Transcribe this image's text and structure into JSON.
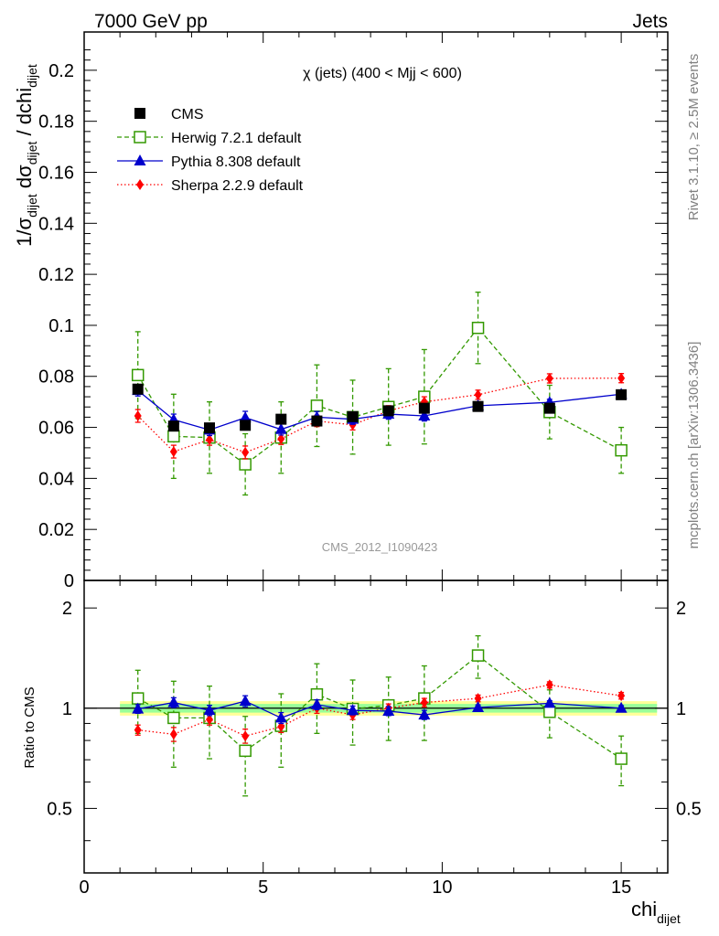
{
  "header": {
    "energy": "7000 GeV pp",
    "process": "Jets",
    "side_top": "Rivet 3.1.10, ≥ 2.5M events",
    "side_bottom": "mcplots.cern.ch [arXiv:1306.3436]",
    "analysis_id": "CMS_2012_I1090423"
  },
  "chart_data": [
    {
      "type": "scatter",
      "title": "χ (jets) (400 < Mjj <  600)",
      "ylabel": "1/σ_dijet dσ_dijet / dchi_dijet",
      "xlim": [
        0,
        16.3
      ],
      "ylim": [
        0,
        0.215
      ],
      "yticks": [
        0,
        0.02,
        0.04,
        0.06,
        0.08,
        0.1,
        0.12,
        0.14,
        0.16,
        0.18,
        0.2
      ],
      "ytick_labels": [
        "0",
        "0.02",
        "0.04",
        "0.06",
        "0.08",
        "0.1",
        "0.12",
        "0.14",
        "0.16",
        "0.18",
        "0.2"
      ],
      "legend_position": "top-left",
      "x": [
        1.5,
        2.5,
        3.5,
        4.5,
        5.5,
        6.5,
        7.5,
        8.5,
        9.5,
        11,
        13,
        15
      ],
      "series": [
        {
          "name": "CMS",
          "color": "#000000",
          "marker": "square",
          "line": "none",
          "values": [
            0.075,
            0.0605,
            0.0598,
            0.0608,
            0.0632,
            0.0625,
            0.0642,
            0.0665,
            0.0675,
            0.0682,
            0.0675,
            0.0728
          ]
        },
        {
          "name": "Herwig 7.2.1 default",
          "color": "#339900",
          "marker": "open-square",
          "line": "dashed",
          "values": [
            0.0805,
            0.0565,
            0.056,
            0.0455,
            0.056,
            0.0685,
            0.064,
            0.068,
            0.072,
            0.099,
            0.066,
            0.051
          ],
          "errors": [
            0.017,
            0.0165,
            0.014,
            0.012,
            0.014,
            0.016,
            0.0145,
            0.015,
            0.0185,
            0.014,
            0.0105,
            0.009
          ]
        },
        {
          "name": "Pythia 8.308 default",
          "color": "#0000cc",
          "marker": "triangle",
          "line": "solid",
          "values": [
            0.0745,
            0.063,
            0.059,
            0.0638,
            0.0592,
            0.064,
            0.0632,
            0.0652,
            0.0645,
            0.0685,
            0.0698,
            0.073
          ],
          "errors": [
            0.0022,
            0.0022,
            0.0022,
            0.0025,
            0.0022,
            0.0022,
            0.002,
            0.002,
            0.002,
            0.0012,
            0.0012,
            0.0012
          ]
        },
        {
          "name": "Sherpa 2.2.9 default",
          "color": "#ff0000",
          "marker": "diamond",
          "line": "dotted",
          "values": [
            0.0645,
            0.0505,
            0.0552,
            0.0502,
            0.0555,
            0.0625,
            0.061,
            0.0665,
            0.07,
            0.0728,
            0.0792,
            0.0793
          ],
          "errors": [
            0.0025,
            0.0025,
            0.0022,
            0.0025,
            0.0022,
            0.0022,
            0.002,
            0.002,
            0.002,
            0.0018,
            0.0018,
            0.0018
          ]
        }
      ]
    },
    {
      "type": "scatter",
      "ylabel": "Ratio to CMS",
      "xlabel": "chi_dijet",
      "xlim": [
        0,
        16.3
      ],
      "ylim": [
        0.32,
        2.42
      ],
      "ylog": true,
      "yticks": [
        0.5,
        1,
        2
      ],
      "ytick_labels": [
        "0.5",
        "1",
        "2"
      ],
      "xticks": [
        0,
        5,
        10,
        15
      ],
      "xtick_labels": [
        "0",
        "5",
        "10",
        "15"
      ],
      "reference_band": {
        "x_from": 1,
        "x_to": 16,
        "inner": [
          0.97,
          1.03
        ],
        "outer": [
          0.95,
          1.05
        ],
        "inner_color": "#99ff99",
        "outer_color": "#ffff99"
      },
      "x": [
        1.5,
        2.5,
        3.5,
        4.5,
        5.5,
        6.5,
        7.5,
        8.5,
        9.5,
        11,
        13,
        15
      ],
      "series": [
        {
          "name": "Herwig 7.2.1 default",
          "color": "#339900",
          "marker": "open-square",
          "line": "dashed",
          "values": [
            1.07,
            0.935,
            0.935,
            0.745,
            0.885,
            1.1,
            0.995,
            1.02,
            1.07,
            1.44,
            0.975,
            0.705
          ],
          "errors": [
            0.23,
            0.27,
            0.23,
            0.2,
            0.22,
            0.26,
            0.22,
            0.22,
            0.27,
            0.21,
            0.16,
            0.12
          ]
        },
        {
          "name": "Pythia 8.308 default",
          "color": "#0000cc",
          "marker": "triangle",
          "line": "solid",
          "values": [
            0.995,
            1.04,
            0.985,
            1.05,
            0.935,
            1.025,
            0.985,
            0.98,
            0.955,
            1.005,
            1.035,
            1.0
          ],
          "errors": [
            0.03,
            0.035,
            0.035,
            0.04,
            0.035,
            0.035,
            0.03,
            0.03,
            0.03,
            0.018,
            0.018,
            0.018
          ]
        },
        {
          "name": "Sherpa 2.2.9 default",
          "color": "#ff0000",
          "marker": "diamond",
          "line": "dotted",
          "values": [
            0.86,
            0.835,
            0.925,
            0.825,
            0.88,
            1.0,
            0.955,
            1.0,
            1.04,
            1.07,
            1.175,
            1.09
          ],
          "errors": [
            0.03,
            0.04,
            0.035,
            0.04,
            0.035,
            0.035,
            0.03,
            0.03,
            0.03,
            0.025,
            0.025,
            0.025
          ]
        }
      ]
    }
  ]
}
